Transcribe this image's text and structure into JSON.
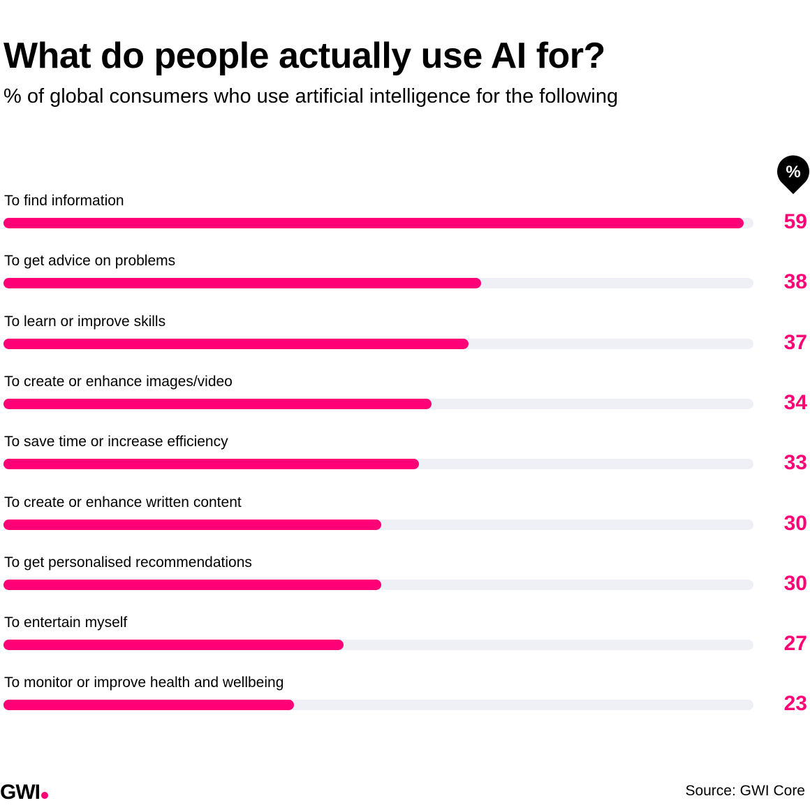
{
  "chart_data": {
    "type": "bar",
    "orientation": "horizontal",
    "title": "What do people actually use AI for?",
    "subtitle": "% of global consumers who use artificial intelligence for the following",
    "unit_icon": "%",
    "categories": [
      "To find information",
      "To get advice on problems",
      "To learn or improve skills",
      "To create or enhance images/video",
      "To save time or increase efficiency",
      "To create or enhance written content",
      "To get personalised recommendations",
      "To entertain myself",
      "To monitor or improve health and wellbeing"
    ],
    "values": [
      59,
      38,
      37,
      34,
      33,
      30,
      30,
      27,
      23
    ],
    "xlim": [
      0,
      60
    ],
    "colors": {
      "bar": "#ff0077",
      "track": "#eef0f5"
    }
  },
  "footer": {
    "logo": "GWI",
    "source": "Source: GWI Core"
  }
}
